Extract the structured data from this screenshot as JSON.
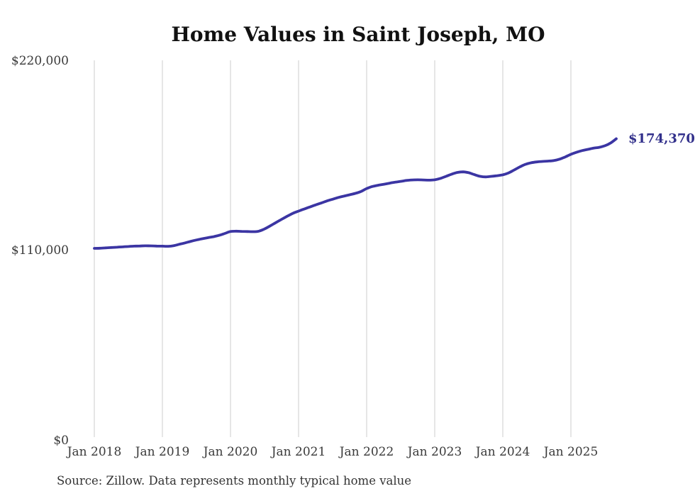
{
  "page": {
    "background": "#ffffff"
  },
  "chart_data": {
    "type": "line",
    "title": "Home Values in Saint Joseph, MO",
    "source_note": "Source: Zillow. Data represents monthly typical home value",
    "end_label": "$174,370",
    "end_value": 174370,
    "line_color": "#3b35a3",
    "end_label_color": "#32308b",
    "grid_color": "#cccccc",
    "tick_text_color": "#3a3a3a",
    "title_color": "#111111",
    "ylim": [
      0,
      220000
    ],
    "grid": "vertical",
    "legend": "none",
    "y_ticks": [
      {
        "value": 0,
        "label": "$0"
      },
      {
        "value": 110000,
        "label": "$110,000"
      },
      {
        "value": 220000,
        "label": "$220,000"
      }
    ],
    "x_ticks": [
      {
        "index": 0,
        "label": "Jan 2018"
      },
      {
        "index": 12,
        "label": "Jan 2019"
      },
      {
        "index": 24,
        "label": "Jan 2020"
      },
      {
        "index": 36,
        "label": "Jan 2021"
      },
      {
        "index": 48,
        "label": "Jan 2022"
      },
      {
        "index": 60,
        "label": "Jan 2023"
      },
      {
        "index": 72,
        "label": "Jan 2024"
      },
      {
        "index": 84,
        "label": "Jan 2025"
      }
    ],
    "x": [
      "2018-01",
      "2018-02",
      "2018-03",
      "2018-04",
      "2018-05",
      "2018-06",
      "2018-07",
      "2018-08",
      "2018-09",
      "2018-10",
      "2018-11",
      "2018-12",
      "2019-01",
      "2019-02",
      "2019-03",
      "2019-04",
      "2019-05",
      "2019-06",
      "2019-07",
      "2019-08",
      "2019-09",
      "2019-10",
      "2019-11",
      "2019-12",
      "2020-01",
      "2020-02",
      "2020-03",
      "2020-04",
      "2020-05",
      "2020-06",
      "2020-07",
      "2020-08",
      "2020-09",
      "2020-10",
      "2020-11",
      "2020-12",
      "2021-01",
      "2021-02",
      "2021-03",
      "2021-04",
      "2021-05",
      "2021-06",
      "2021-07",
      "2021-08",
      "2021-09",
      "2021-10",
      "2021-11",
      "2021-12",
      "2022-01",
      "2022-02",
      "2022-03",
      "2022-04",
      "2022-05",
      "2022-06",
      "2022-07",
      "2022-08",
      "2022-09",
      "2022-10",
      "2022-11",
      "2022-12",
      "2023-01",
      "2023-02",
      "2023-03",
      "2023-04",
      "2023-05",
      "2023-06",
      "2023-07",
      "2023-08",
      "2023-09",
      "2023-10",
      "2023-11",
      "2023-12",
      "2024-01",
      "2024-02",
      "2024-03",
      "2024-04",
      "2024-05",
      "2024-06",
      "2024-07",
      "2024-08",
      "2024-09",
      "2024-10",
      "2024-11",
      "2024-12",
      "2025-01",
      "2025-02",
      "2025-03",
      "2025-04",
      "2025-05",
      "2025-06",
      "2025-07",
      "2025-08",
      "2025-09"
    ],
    "values": [
      110600,
      110700,
      110900,
      111100,
      111300,
      111500,
      111700,
      111900,
      112000,
      112100,
      112050,
      111950,
      111900,
      111800,
      112200,
      113000,
      113800,
      114700,
      115500,
      116200,
      116800,
      117400,
      118200,
      119300,
      120400,
      120600,
      120500,
      120400,
      120300,
      120600,
      121900,
      123700,
      125600,
      127500,
      129300,
      131000,
      132300,
      133500,
      134700,
      135900,
      137000,
      138200,
      139200,
      140200,
      141000,
      141800,
      142600,
      143700,
      145400,
      146600,
      147300,
      147900,
      148500,
      149100,
      149600,
      150100,
      150400,
      150500,
      150400,
      150300,
      150500,
      151300,
      152500,
      153800,
      154800,
      155100,
      154600,
      153500,
      152500,
      152200,
      152500,
      152900,
      153400,
      154500,
      156200,
      158000,
      159500,
      160400,
      160900,
      161200,
      161400,
      161700,
      162500,
      163800,
      165300,
      166500,
      167500,
      168200,
      168900,
      169400,
      170300,
      171900,
      174370
    ]
  }
}
